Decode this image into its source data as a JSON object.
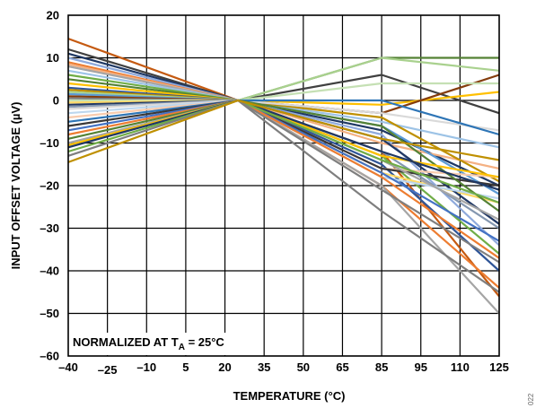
{
  "chart_data": {
    "type": "line",
    "title": "",
    "xlabel": "TEMPERATURE (°C)",
    "ylabel": "INPUT OFFSET VOLTAGE (µV)",
    "x_tick_labels": [
      "–40",
      "–25",
      "–10",
      "5",
      "20",
      "35",
      "50",
      "65",
      "85",
      "95",
      "110",
      "125"
    ],
    "x": [
      -40,
      25,
      85,
      125
    ],
    "ylim": [
      -60,
      20
    ],
    "y_ticks": [
      -60,
      -50,
      -40,
      -30,
      -20,
      -10,
      0,
      10,
      20
    ],
    "y_tick_labels": [
      "–60",
      "–50",
      "–40",
      "–30",
      "–20",
      "–10",
      "0",
      "10",
      "20"
    ],
    "grid": true,
    "legend": "none",
    "annotation": {
      "text_before": "NORMALIZED AT T",
      "subscript": "A",
      "text_after": " = 25°C"
    },
    "figure_id": "022",
    "series": [
      {
        "color": "#c55a11",
        "values": [
          14.5,
          0,
          -12,
          -46
        ]
      },
      {
        "color": "#404040",
        "values": [
          12,
          0,
          6,
          -3
        ]
      },
      {
        "color": "#1f3864",
        "values": [
          11,
          0,
          -7,
          -20
        ]
      },
      {
        "color": "#8faadc",
        "values": [
          10,
          0,
          -8,
          -34
        ]
      },
      {
        "color": "#ed7d31",
        "values": [
          9,
          0,
          -20,
          -44
        ]
      },
      {
        "color": "#f4b183",
        "values": [
          8.5,
          0,
          -10,
          -16
        ]
      },
      {
        "color": "#a5a5a5",
        "values": [
          8,
          0,
          -20,
          -50
        ]
      },
      {
        "color": "#9dc3e6",
        "values": [
          7,
          0,
          -5,
          -11
        ]
      },
      {
        "color": "#70ad47",
        "values": [
          6,
          0,
          -13,
          -36
        ]
      },
      {
        "color": "#548235",
        "values": [
          5,
          0,
          10,
          10
        ]
      },
      {
        "color": "#ffc000",
        "values": [
          4,
          0,
          -1,
          2
        ]
      },
      {
        "color": "#2f5597",
        "values": [
          3,
          0,
          -15,
          -40
        ]
      },
      {
        "color": "#bf9000",
        "values": [
          2.5,
          0,
          -4,
          -19
        ]
      },
      {
        "color": "#a9d18e",
        "values": [
          2,
          0,
          10,
          7
        ]
      },
      {
        "color": "#5b9bd5",
        "values": [
          1.5,
          0,
          -6,
          -22
        ]
      },
      {
        "color": "#843c0c",
        "values": [
          1,
          0,
          -3,
          6
        ]
      },
      {
        "color": "#7f7f7f",
        "values": [
          0.5,
          0,
          -26,
          -45
        ]
      },
      {
        "color": "#c5e0b4",
        "values": [
          0,
          0,
          4,
          4
        ]
      },
      {
        "color": "#ffd966",
        "values": [
          -0.5,
          0,
          -17,
          -24
        ]
      },
      {
        "color": "#203864",
        "values": [
          -1,
          0,
          -9,
          -29
        ]
      },
      {
        "color": "#8497b0",
        "values": [
          -1.5,
          0,
          -12,
          -30
        ]
      },
      {
        "color": "#d9d9d9",
        "values": [
          -2,
          0,
          -3,
          -7
        ]
      },
      {
        "color": "#bdd7ee",
        "values": [
          -3,
          0,
          -18,
          -23
        ]
      },
      {
        "color": "#f8cbad",
        "values": [
          -4,
          0,
          -16,
          -18
        ]
      },
      {
        "color": "#2e75b6",
        "values": [
          -5,
          0,
          0,
          -8
        ]
      },
      {
        "color": "#3b3838",
        "values": [
          -6,
          0,
          -16,
          -20
        ]
      },
      {
        "color": "#4472c4",
        "values": [
          -7,
          0,
          -17,
          -33
        ]
      },
      {
        "color": "#ed7d31",
        "values": [
          -8,
          0,
          -18,
          -37
        ]
      },
      {
        "color": "#548235",
        "values": [
          -9,
          0,
          -6,
          -26
        ]
      },
      {
        "color": "#a5a5a5",
        "values": [
          -10,
          0,
          -14,
          -28
        ]
      },
      {
        "color": "#ffc000",
        "values": [
          -10.5,
          0,
          -13,
          -18
        ]
      },
      {
        "color": "#203864",
        "values": [
          -11,
          0,
          -12,
          -21
        ]
      },
      {
        "color": "#70ad47",
        "values": [
          -12,
          0,
          -14,
          -24
        ]
      },
      {
        "color": "#7f7f7f",
        "values": [
          -13,
          0,
          -21,
          -38
        ]
      },
      {
        "color": "#bf9000",
        "values": [
          -14.5,
          0,
          -9,
          -14
        ]
      }
    ]
  }
}
